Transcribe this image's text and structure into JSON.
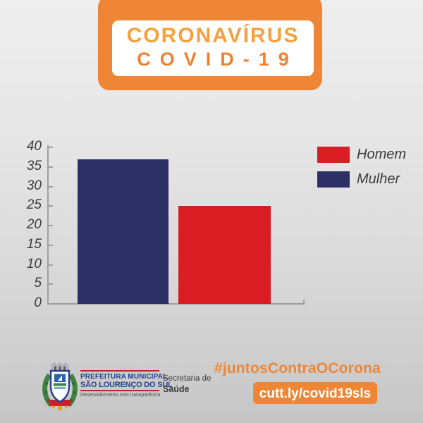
{
  "badge": {
    "line1": "CORONAVÍRUS",
    "line2": "COVID-19"
  },
  "chart_data": {
    "type": "bar",
    "categories": [
      "Mulher",
      "Homem"
    ],
    "values": [
      37,
      25
    ],
    "series": [
      {
        "name": "Mulher",
        "values": [
          37
        ],
        "color": "#2c3064"
      },
      {
        "name": "Homem",
        "values": [
          25
        ],
        "color": "#da1c23"
      }
    ],
    "title": "",
    "xlabel": "",
    "ylabel": "",
    "ylim": [
      0,
      40
    ],
    "yticks": [
      0,
      5,
      10,
      15,
      20,
      25,
      30,
      35,
      40
    ],
    "grid": false,
    "legend_position": "right",
    "legend": [
      {
        "label": "Homem",
        "color": "#da1c23"
      },
      {
        "label": "Mulher",
        "color": "#2c3064"
      }
    ],
    "bar_colors": [
      "#2c3064",
      "#da1c23"
    ]
  },
  "footer": {
    "org_line1": "PREFEITURA MUNICIPAL",
    "org_line2": "SÃO LOURENÇO DO SUL",
    "org_tagline": "Desenvolvimento com transparência",
    "dept_line1": "Secretaria de",
    "dept_line2": "Saúde",
    "hashtag": "#juntosContraOCorona",
    "link_label": "cutt.ly/covid19sls"
  },
  "colors": {
    "accent_orange": "#ef8636",
    "title_orange_light": "#f5a23e",
    "bar_navy": "#2c3064",
    "bar_red": "#da1c23",
    "axis_gray": "#9f9f9f",
    "text_dark": "#3b3b3b",
    "org_blue": "#2a3d8f",
    "org_red": "#c8202a",
    "background_top": "#eeeeee",
    "background_bottom": "#c6c6c6"
  }
}
